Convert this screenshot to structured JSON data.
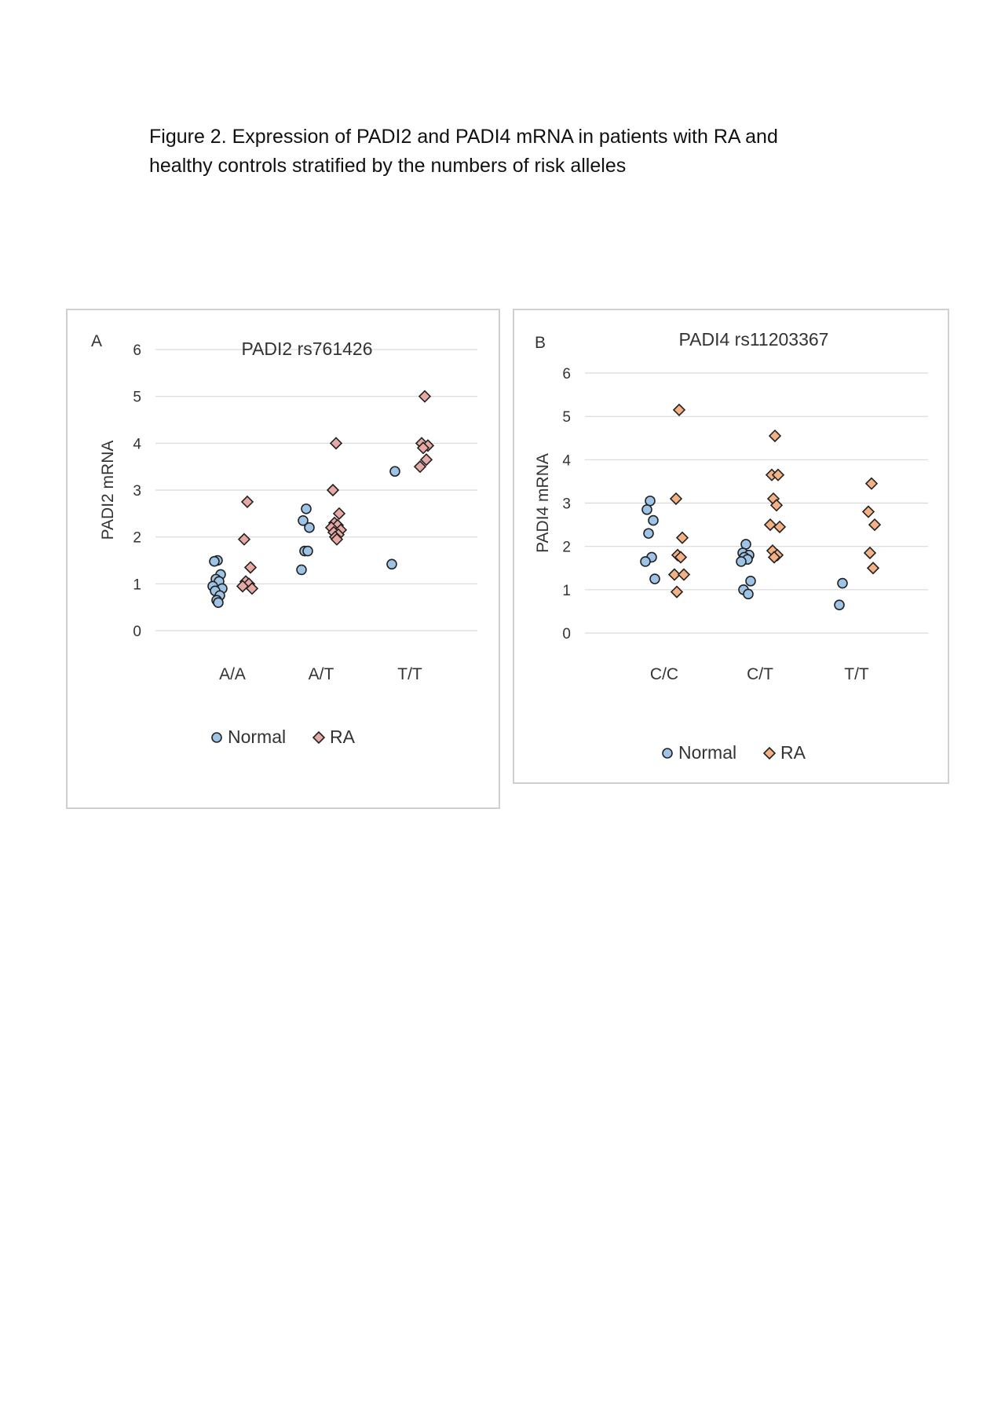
{
  "caption": {
    "line1": "Figure 2. Expression of PADI2 and PADI4 mRNA in patients with RA and",
    "line2": "healthy controls stratified by the numbers of risk alleles"
  },
  "colors": {
    "normal_fill": "#9dc3e6",
    "ra_fill_a": "#e6a9a4",
    "ra_fill_b": "#f4b183",
    "marker_stroke": "#222222",
    "grid": "#d9d9d9"
  },
  "chart_data": [
    {
      "type": "scatter",
      "panel_label": "A",
      "title": "PADI2 rs761426",
      "ylabel": "PADI2 mRNA",
      "xlabel": "",
      "categories": [
        "A/A",
        "A/T",
        "T/T"
      ],
      "ylim": [
        0,
        6
      ],
      "yticks": [
        "0",
        "1",
        "2",
        "3",
        "4",
        "5",
        "6"
      ],
      "grid": true,
      "legend_position": "bottom",
      "series": [
        {
          "name": "Normal",
          "marker": "circle",
          "values": [
            [
              1.5,
              1.48,
              1.2,
              1.1,
              1.05,
              0.95,
              0.9,
              0.85,
              0.75,
              0.65,
              0.6
            ],
            [
              2.6,
              2.35,
              2.2,
              1.7,
              1.7,
              1.3
            ],
            [
              3.4,
              1.42
            ]
          ]
        },
        {
          "name": "RA",
          "marker": "diamond",
          "values": [
            [
              2.75,
              1.95,
              1.35,
              1.05,
              1.0,
              0.95,
              0.9
            ],
            [
              4.0,
              3.0,
              2.5,
              2.3,
              2.25,
              2.2,
              2.15,
              2.1,
              2.05,
              2.0,
              1.95
            ],
            [
              5.0,
              4.0,
              3.95,
              3.9,
              3.65,
              3.5
            ]
          ]
        }
      ]
    },
    {
      "type": "scatter",
      "panel_label": "B",
      "title": "PADI4 rs11203367",
      "ylabel": "PADI4 mRNA",
      "xlabel": "",
      "categories": [
        "C/C",
        "C/T",
        "T/T"
      ],
      "ylim": [
        0,
        6
      ],
      "yticks": [
        "0",
        "1",
        "2",
        "3",
        "4",
        "5",
        "6"
      ],
      "grid": true,
      "legend_position": "bottom",
      "series": [
        {
          "name": "Normal",
          "marker": "circle",
          "values": [
            [
              3.05,
              2.85,
              2.6,
              2.3,
              1.75,
              1.65,
              1.25
            ],
            [
              2.05,
              1.85,
              1.8,
              1.75,
              1.7,
              1.65,
              1.2,
              1.0,
              0.9
            ],
            [
              1.15,
              0.65
            ]
          ]
        },
        {
          "name": "RA",
          "marker": "diamond",
          "values": [
            [
              5.15,
              3.1,
              2.2,
              1.8,
              1.75,
              1.35,
              1.35,
              0.95
            ],
            [
              4.55,
              3.65,
              3.65,
              3.1,
              2.95,
              2.5,
              2.45,
              1.9,
              1.8,
              1.75
            ],
            [
              3.45,
              2.8,
              2.5,
              1.85,
              1.5
            ]
          ]
        }
      ]
    }
  ]
}
